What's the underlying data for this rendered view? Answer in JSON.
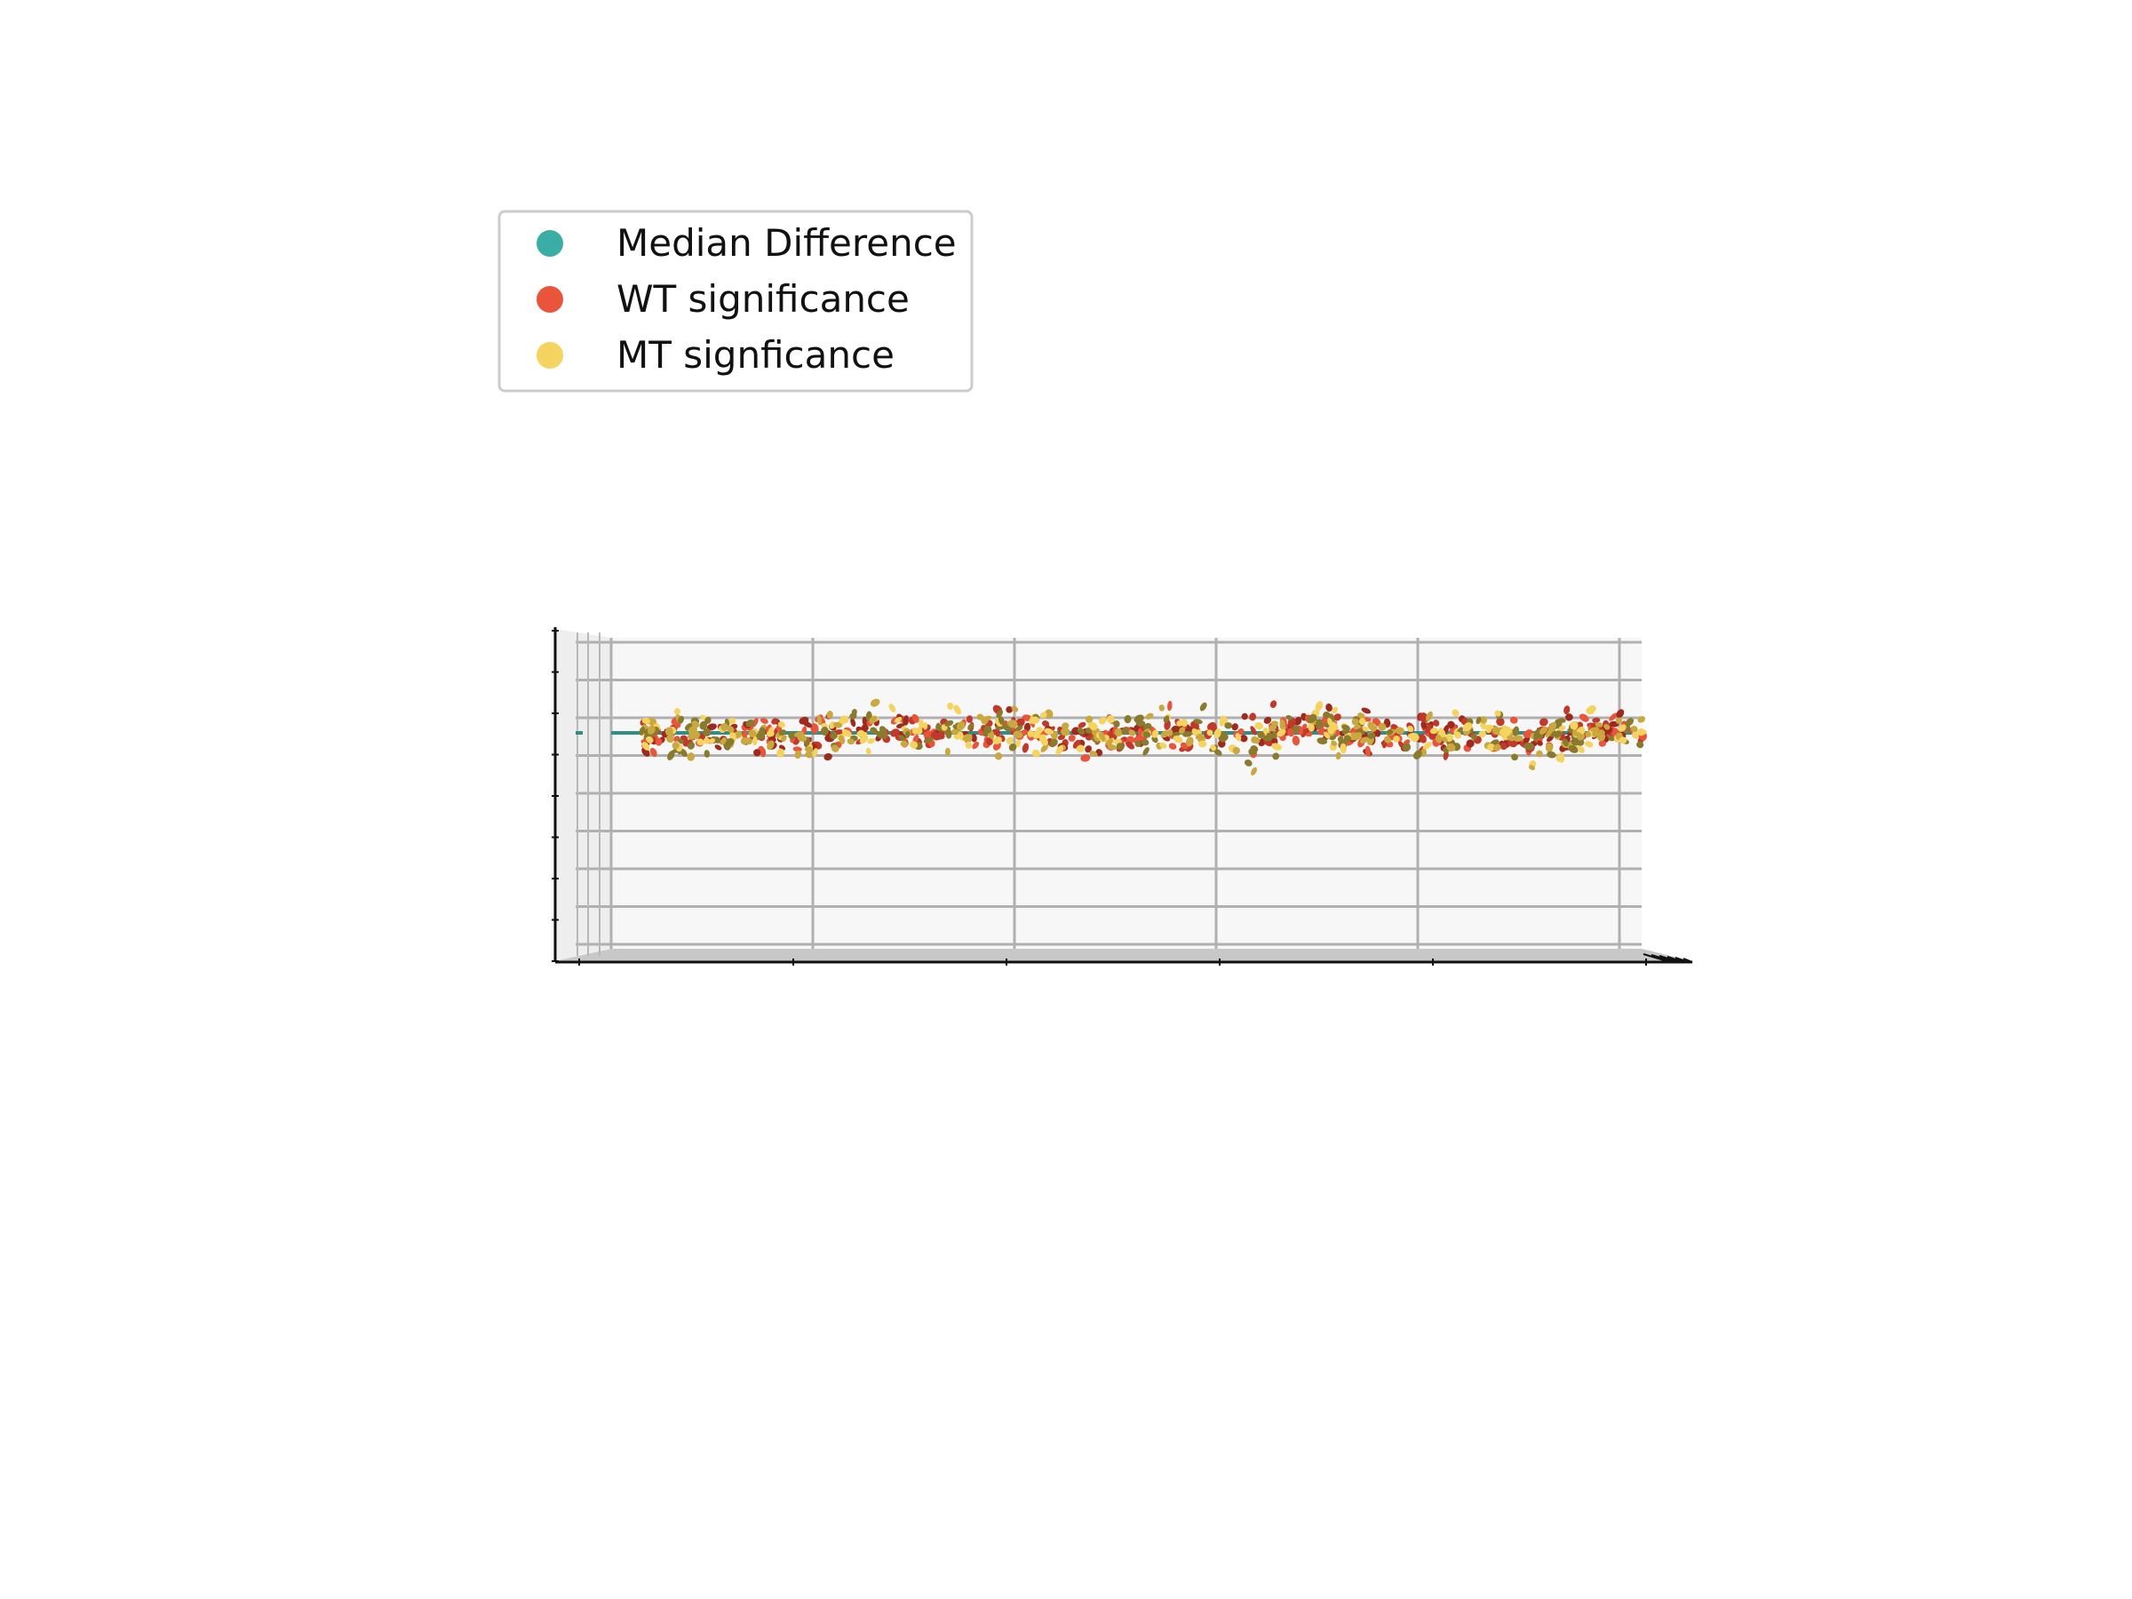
{
  "chart_data": {
    "type": "scatter",
    "projection": "3d",
    "view": "side view, z axis pointing toward viewer",
    "title": "",
    "xlabel": "",
    "ylabel": "",
    "zlabel": "",
    "tick_labels_shown": false,
    "grid": true,
    "pane_color": "#f7f7f7",
    "legend": {
      "placement": "upper-left",
      "entries": [
        {
          "label": "Median Difference",
          "color": "#3aaea5"
        },
        {
          "label": "WT significance",
          "color": "#e8553b"
        },
        {
          "label": "MT signficance",
          "color": "#f4d35e"
        }
      ]
    },
    "x_range": [
      0,
      1000
    ],
    "y_range": [
      -4,
      4
    ],
    "series": [
      {
        "name": "Median Difference",
        "kind": "line",
        "color": "#2f8f88",
        "value": 0
      },
      {
        "name": "WT significance",
        "kind": "scatter",
        "colors": [
          "#c0392b",
          "#e8553b",
          "#9e2a1f"
        ],
        "count": 460,
        "spread": 0.25
      },
      {
        "name": "MT signficance",
        "kind": "scatter",
        "colors": [
          "#f4d35e",
          "#c9a83f",
          "#8a7a2e"
        ],
        "count": 460,
        "spread": 0.3
      }
    ]
  }
}
